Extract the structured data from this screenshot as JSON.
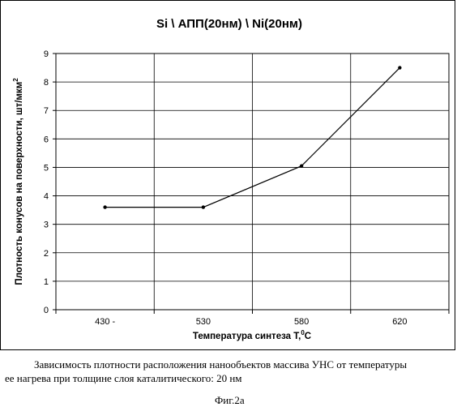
{
  "chart_data": {
    "type": "line",
    "title": "Si \\ АПП(20нм) \\ Ni(20нм)",
    "xlabel_main": "Температура синтеза  Т,",
    "xlabel_sup": "0",
    "xlabel_tail": "С",
    "ylabel_main": "Плотность конусов на поверхности, шт/мкм",
    "ylabel_sup": "2",
    "categories": [
      "430 -",
      "530",
      "580",
      "620"
    ],
    "values": [
      3.6,
      3.6,
      5.05,
      8.5
    ],
    "ylim": [
      0,
      9
    ],
    "yticks": [
      "0",
      "1",
      "2",
      "3",
      "4",
      "5",
      "6",
      "7",
      "8",
      "9"
    ],
    "grid": true,
    "legend": "none",
    "line_color": "#000000"
  },
  "caption": {
    "line1": "Зависимость плотности расположения нанообъектов массива УНС от температуры",
    "line2": "ее нагрева при толщине слоя каталитического: 20 нм"
  },
  "figure_label": "Фиг.2а"
}
